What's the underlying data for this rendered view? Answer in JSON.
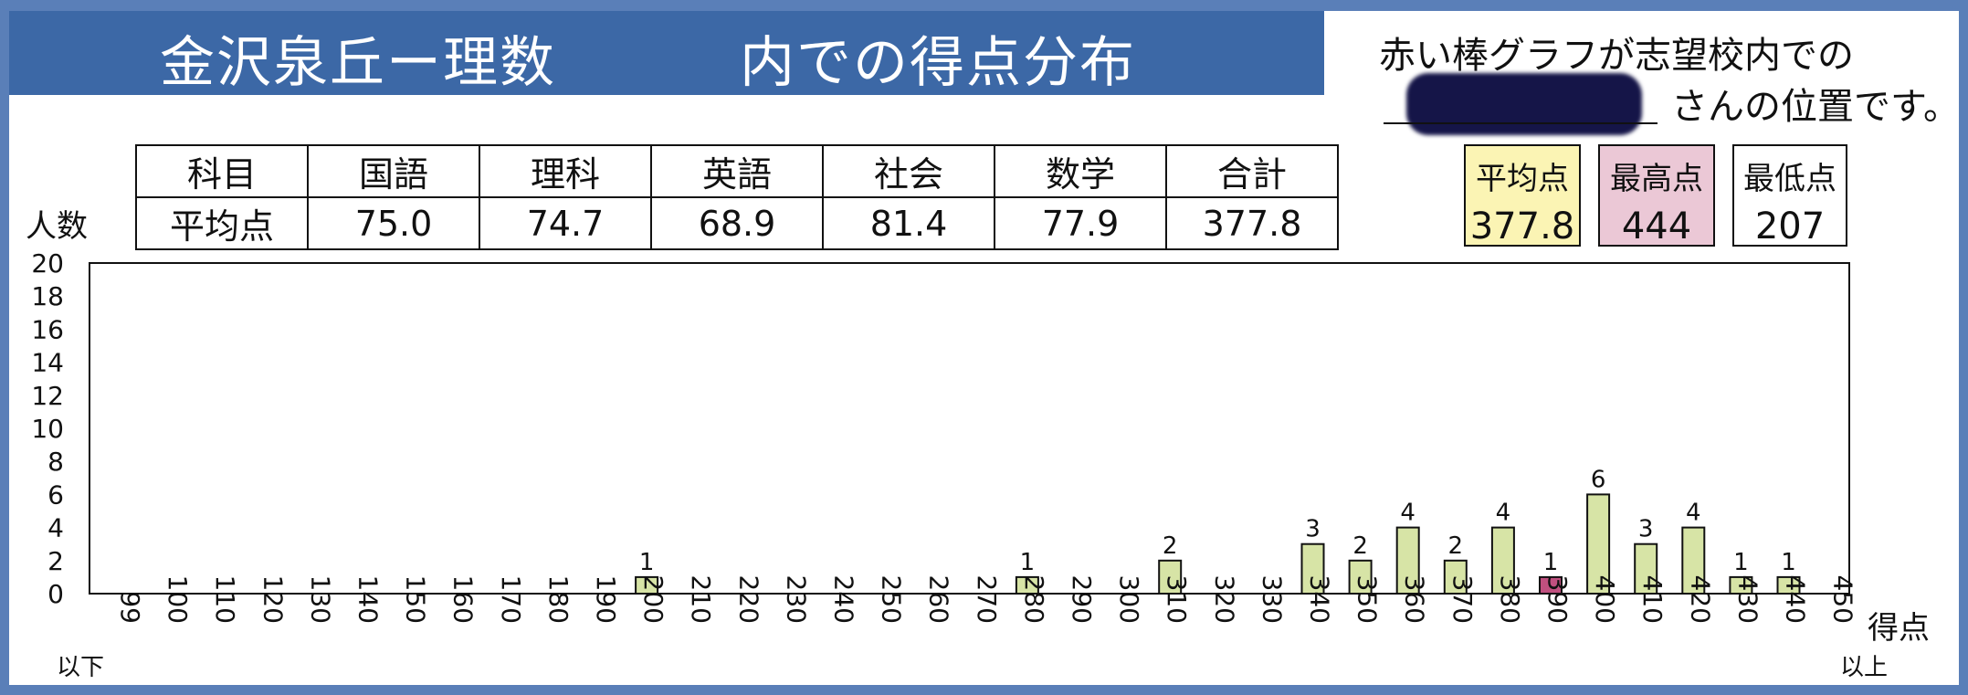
{
  "title": {
    "main": "金沢泉丘ー理数",
    "sub": "内での得点分布"
  },
  "note": {
    "line1": "赤い棒グラフが志望校内での",
    "line2": "さんの位置です。"
  },
  "score_table": {
    "header": [
      "科目",
      "国語",
      "理科",
      "英語",
      "社会",
      "数学",
      "合計"
    ],
    "row": [
      "平均点",
      "75.0",
      "74.7",
      "68.9",
      "81.4",
      "77.9",
      "377.8"
    ]
  },
  "stats": {
    "avg_label": "平均点",
    "avg_value": "377.8",
    "max_label": "最高点",
    "max_value": "444",
    "min_label": "最低点",
    "min_value": "207"
  },
  "colors": {
    "bar": "#d7e4a6",
    "highlight_bar": "#c0507f",
    "avg_box": "#fbf4b4",
    "max_box": "#ebc8d6",
    "header_bg": "#3c68a6"
  },
  "chart_data": {
    "type": "bar",
    "ylabel": "人数",
    "xlabel": "得点",
    "x_first_suffix": "以下",
    "x_last_suffix": "以上",
    "ylim": [
      0,
      20
    ],
    "yticks": [
      0,
      2,
      4,
      6,
      8,
      10,
      12,
      14,
      16,
      18,
      20
    ],
    "categories": [
      "99",
      "100",
      "110",
      "120",
      "130",
      "140",
      "150",
      "160",
      "170",
      "180",
      "190",
      "200",
      "210",
      "220",
      "230",
      "240",
      "250",
      "260",
      "270",
      "280",
      "290",
      "300",
      "310",
      "320",
      "330",
      "340",
      "350",
      "360",
      "370",
      "380",
      "390",
      "400",
      "410",
      "420",
      "430",
      "440",
      "450"
    ],
    "values": [
      0,
      0,
      0,
      0,
      0,
      0,
      0,
      0,
      0,
      0,
      0,
      1,
      0,
      0,
      0,
      0,
      0,
      0,
      0,
      1,
      0,
      0,
      2,
      0,
      0,
      3,
      2,
      4,
      2,
      4,
      1,
      6,
      3,
      4,
      1,
      1,
      0
    ],
    "highlight_category": "390",
    "grid": false
  }
}
